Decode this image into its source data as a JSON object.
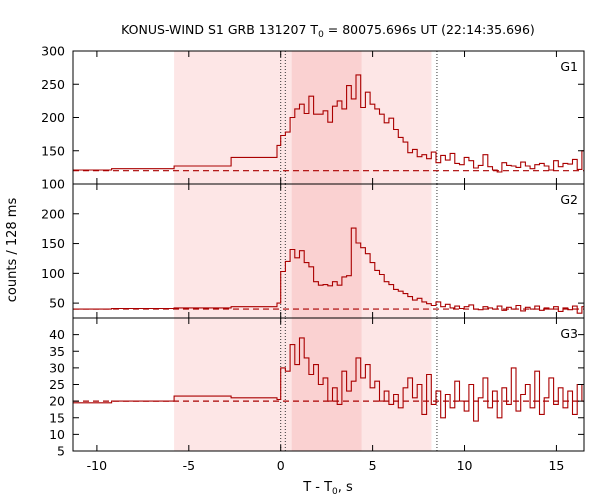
{
  "chart_data": {
    "type": "line",
    "title_prefix": "KONUS-WIND S1 GRB 131207 T",
    "title_sub": "0",
    "title_suffix": " = 80075.696s UT (22:14:35.696)",
    "xlabel_prefix": "T - T",
    "xlabel_sub": "0",
    "xlabel_suffix": ", s",
    "ylabel": "counts / 128 ms",
    "xlim": [
      -11.3,
      16.5
    ],
    "x_ticks": [
      -10,
      -5,
      0,
      5,
      10,
      15
    ],
    "x_tick_labels": [
      "-10",
      "-5",
      "0",
      "5",
      "10",
      "15"
    ],
    "shaded_intervals": [
      {
        "x0": -5.8,
        "x1": 8.2,
        "color": "#fde6e6"
      },
      {
        "x0": 0.6,
        "x1": 4.4,
        "color": "#fad1d1"
      }
    ],
    "dotted_vlines": [
      0.0,
      0.25,
      8.5
    ],
    "line_color": "#aa0000",
    "panels": [
      {
        "name": "G1",
        "ylim": [
          100,
          300
        ],
        "y_ticks": [
          100,
          150,
          200,
          250,
          300
        ],
        "y_tick_labels": [
          "100",
          "150",
          "200",
          "250",
          "300"
        ],
        "background": 120,
        "pre_steps": [
          [
            -11.3,
            121
          ],
          [
            -9.2,
            123
          ],
          [
            -5.8,
            127
          ],
          [
            -2.7,
            140
          ],
          [
            -0.2,
            158
          ]
        ],
        "burst": [
          [
            0.0,
            173
          ],
          [
            0.256,
            178
          ],
          [
            0.512,
            200
          ],
          [
            0.768,
            213
          ],
          [
            1.024,
            220
          ],
          [
            1.28,
            206
          ],
          [
            1.536,
            232
          ],
          [
            1.792,
            205
          ],
          [
            2.048,
            205
          ],
          [
            2.304,
            210
          ],
          [
            2.56,
            193
          ],
          [
            2.816,
            217
          ],
          [
            3.072,
            225
          ],
          [
            3.328,
            213
          ],
          [
            3.584,
            248
          ],
          [
            3.84,
            228
          ],
          [
            4.096,
            264
          ],
          [
            4.352,
            215
          ],
          [
            4.608,
            238
          ],
          [
            4.864,
            220
          ],
          [
            5.12,
            213
          ],
          [
            5.376,
            205
          ],
          [
            5.632,
            192
          ],
          [
            5.888,
            199
          ],
          [
            6.144,
            182
          ],
          [
            6.4,
            170
          ],
          [
            6.656,
            163
          ],
          [
            6.912,
            147
          ],
          [
            7.168,
            152
          ],
          [
            7.424,
            141
          ],
          [
            7.68,
            144
          ],
          [
            7.936,
            138
          ],
          [
            8.192,
            148
          ],
          [
            8.448,
            132
          ],
          [
            8.704,
            143
          ],
          [
            8.96,
            136
          ],
          [
            9.216,
            146
          ],
          [
            9.472,
            131
          ],
          [
            9.728,
            129
          ],
          [
            9.984,
            140
          ],
          [
            10.24,
            135
          ],
          [
            10.496,
            124
          ],
          [
            10.752,
            128
          ],
          [
            11.008,
            144
          ],
          [
            11.264,
            126
          ],
          [
            11.52,
            121
          ],
          [
            11.776,
            118
          ],
          [
            12.032,
            132
          ],
          [
            12.288,
            128
          ],
          [
            12.544,
            127
          ],
          [
            12.8,
            125
          ],
          [
            13.056,
            133
          ],
          [
            13.312,
            127
          ],
          [
            13.568,
            123
          ],
          [
            13.824,
            129
          ],
          [
            14.08,
            131
          ],
          [
            14.336,
            127
          ],
          [
            14.592,
            121
          ],
          [
            14.848,
            135
          ],
          [
            15.104,
            126
          ],
          [
            15.36,
            131
          ],
          [
            15.616,
            130
          ],
          [
            15.872,
            137
          ],
          [
            16.128,
            122
          ],
          [
            16.384,
            150
          ]
        ]
      },
      {
        "name": "G2",
        "ylim": [
          25,
          250
        ],
        "y_ticks": [
          50,
          100,
          150,
          200
        ],
        "y_tick_labels": [
          "50",
          "100",
          "150",
          "200"
        ],
        "background": 40,
        "pre_steps": [
          [
            -11.3,
            40
          ],
          [
            -9.2,
            41
          ],
          [
            -5.8,
            42
          ],
          [
            -2.7,
            44
          ],
          [
            -0.2,
            50
          ]
        ],
        "burst": [
          [
            0.0,
            103
          ],
          [
            0.256,
            120
          ],
          [
            0.512,
            140
          ],
          [
            0.768,
            126
          ],
          [
            1.024,
            138
          ],
          [
            1.28,
            118
          ],
          [
            1.536,
            111
          ],
          [
            1.792,
            86
          ],
          [
            2.048,
            80
          ],
          [
            2.304,
            81
          ],
          [
            2.56,
            79
          ],
          [
            2.816,
            86
          ],
          [
            3.072,
            80
          ],
          [
            3.328,
            94
          ],
          [
            3.584,
            96
          ],
          [
            3.84,
            176
          ],
          [
            4.096,
            151
          ],
          [
            4.352,
            143
          ],
          [
            4.608,
            133
          ],
          [
            4.864,
            118
          ],
          [
            5.12,
            105
          ],
          [
            5.376,
            98
          ],
          [
            5.632,
            86
          ],
          [
            5.888,
            81
          ],
          [
            6.144,
            73
          ],
          [
            6.4,
            70
          ],
          [
            6.656,
            66
          ],
          [
            6.912,
            61
          ],
          [
            7.168,
            55
          ],
          [
            7.424,
            58
          ],
          [
            7.68,
            52
          ],
          [
            7.936,
            49
          ],
          [
            8.192,
            46
          ],
          [
            8.448,
            52
          ],
          [
            8.704,
            44
          ],
          [
            8.96,
            48
          ],
          [
            9.216,
            42
          ],
          [
            9.472,
            45
          ],
          [
            9.728,
            41
          ],
          [
            9.984,
            44
          ],
          [
            10.24,
            47
          ],
          [
            10.496,
            40
          ],
          [
            10.752,
            39
          ],
          [
            11.008,
            44
          ],
          [
            11.264,
            42
          ],
          [
            11.52,
            40
          ],
          [
            11.776,
            45
          ],
          [
            12.032,
            38
          ],
          [
            12.288,
            43
          ],
          [
            12.544,
            40
          ],
          [
            12.8,
            46
          ],
          [
            13.056,
            37
          ],
          [
            13.312,
            43
          ],
          [
            13.568,
            40
          ],
          [
            13.824,
            45
          ],
          [
            14.08,
            38
          ],
          [
            14.336,
            42
          ],
          [
            14.592,
            40
          ],
          [
            14.848,
            44
          ],
          [
            15.104,
            36
          ],
          [
            15.36,
            42
          ],
          [
            15.616,
            39
          ],
          [
            15.872,
            45
          ],
          [
            16.128,
            33
          ],
          [
            16.384,
            44
          ]
        ]
      },
      {
        "name": "G3",
        "ylim": [
          5,
          45
        ],
        "y_ticks": [
          5,
          10,
          15,
          20,
          25,
          30,
          35,
          40
        ],
        "y_tick_labels": [
          "5",
          "10",
          "15",
          "20",
          "25",
          "30",
          "35",
          "40"
        ],
        "background": 20,
        "pre_steps": [
          [
            -11.3,
            19.5
          ],
          [
            -9.2,
            20
          ],
          [
            -5.8,
            21.5
          ],
          [
            -2.7,
            21
          ],
          [
            -0.2,
            20.5
          ]
        ],
        "burst": [
          [
            0.0,
            30
          ],
          [
            0.256,
            29
          ],
          [
            0.512,
            37
          ],
          [
            0.768,
            31
          ],
          [
            1.024,
            39
          ],
          [
            1.28,
            33
          ],
          [
            1.536,
            28
          ],
          [
            1.792,
            31
          ],
          [
            2.048,
            25
          ],
          [
            2.304,
            27
          ],
          [
            2.56,
            20
          ],
          [
            2.816,
            24
          ],
          [
            3.072,
            19
          ],
          [
            3.328,
            29
          ],
          [
            3.584,
            23
          ],
          [
            3.84,
            26
          ],
          [
            4.096,
            33
          ],
          [
            4.352,
            27
          ],
          [
            4.608,
            31
          ],
          [
            4.864,
            24
          ],
          [
            5.12,
            26
          ],
          [
            5.376,
            20
          ],
          [
            5.632,
            23
          ],
          [
            5.888,
            19
          ],
          [
            6.144,
            22
          ],
          [
            6.4,
            18
          ],
          [
            6.656,
            24
          ],
          [
            6.912,
            27
          ],
          [
            7.168,
            21
          ],
          [
            7.424,
            25
          ],
          [
            7.68,
            16
          ],
          [
            7.936,
            28
          ],
          [
            8.192,
            19
          ],
          [
            8.448,
            23
          ],
          [
            8.704,
            15
          ],
          [
            8.96,
            22
          ],
          [
            9.216,
            18
          ],
          [
            9.472,
            26
          ],
          [
            9.728,
            20
          ],
          [
            9.984,
            17
          ],
          [
            10.24,
            25
          ],
          [
            10.496,
            14
          ],
          [
            10.752,
            21
          ],
          [
            11.008,
            27
          ],
          [
            11.264,
            18
          ],
          [
            11.52,
            23
          ],
          [
            11.776,
            15
          ],
          [
            12.032,
            24
          ],
          [
            12.288,
            19
          ],
          [
            12.544,
            30
          ],
          [
            12.8,
            17
          ],
          [
            13.056,
            22
          ],
          [
            13.312,
            25
          ],
          [
            13.568,
            18
          ],
          [
            13.824,
            29
          ],
          [
            14.08,
            16
          ],
          [
            14.336,
            21
          ],
          [
            14.592,
            27
          ],
          [
            14.848,
            19
          ],
          [
            15.104,
            24
          ],
          [
            15.36,
            18
          ],
          [
            15.616,
            23
          ],
          [
            15.872,
            16
          ],
          [
            16.128,
            25
          ],
          [
            16.384,
            20
          ]
        ]
      }
    ]
  }
}
